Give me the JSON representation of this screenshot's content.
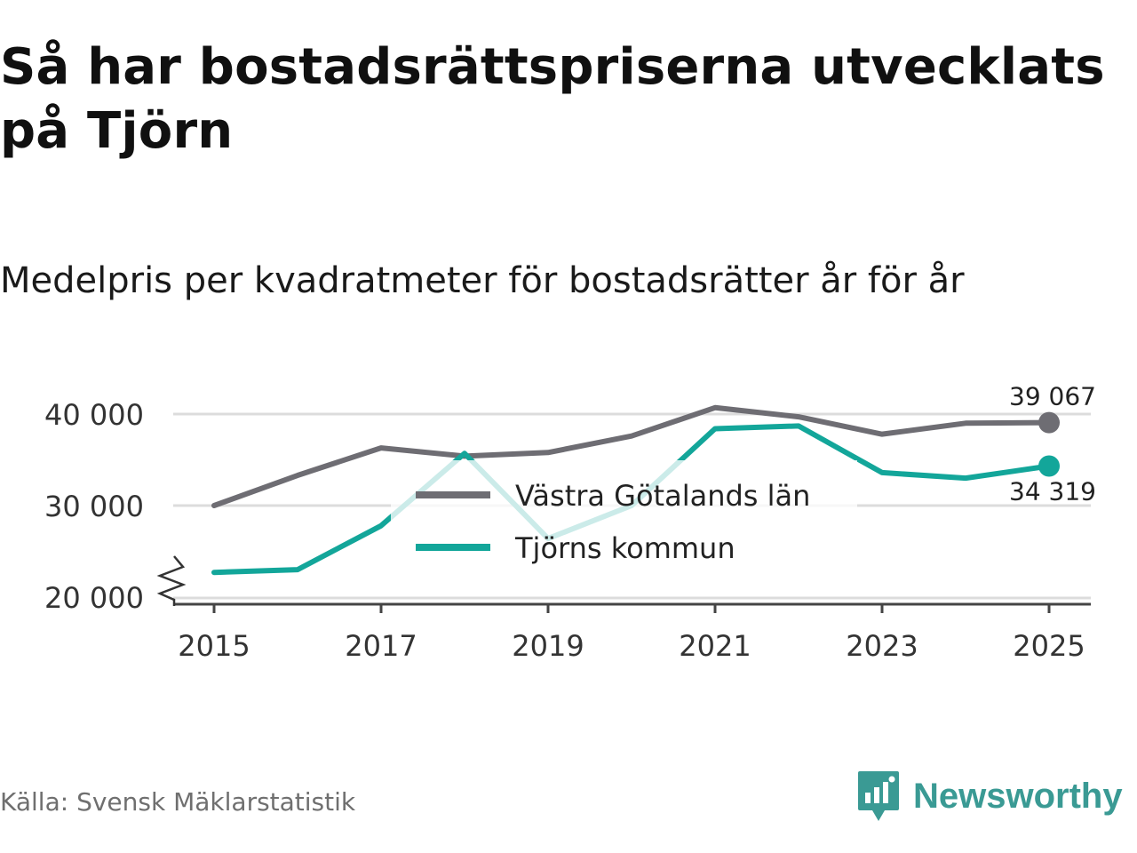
{
  "title": "Så har bostadsrättspriserna utvecklats på Tjörn",
  "subtitle": "Medelpris per kvadratmeter för bostadsrätter år för år",
  "source": "Källa: Svensk Mäklarstatistik",
  "brand": {
    "name": "Newsworthy",
    "icon": "newsworthy-logo-icon",
    "color": "#3a9a94"
  },
  "chart_data": {
    "type": "line",
    "title": "Medelpris per kvadratmeter för bostadsrätter år för år",
    "xlabel": "",
    "ylabel": "",
    "x": [
      2015,
      2016,
      2017,
      2018,
      2019,
      2020,
      2021,
      2022,
      2023,
      2024,
      2025
    ],
    "ylim": [
      20000,
      40000
    ],
    "y_ticks": [
      20000,
      30000,
      40000
    ],
    "y_tick_labels": [
      "20 000",
      "30 000",
      "40 000"
    ],
    "x_ticks": [
      2015,
      2017,
      2019,
      2021,
      2023,
      2025
    ],
    "x_tick_labels": [
      "2015",
      "2017",
      "2019",
      "2021",
      "2023",
      "2025"
    ],
    "axis_break": true,
    "grid": true,
    "legend_position": "center",
    "series": [
      {
        "name": "Västra Götalands län",
        "color": "#6e6d73",
        "values": [
          30000,
          33300,
          36300,
          35400,
          35800,
          37600,
          40700,
          39700,
          37800,
          39000,
          39067
        ],
        "end_label": "39 067"
      },
      {
        "name": "Tjörns kommun",
        "color": "#13a69a",
        "values": [
          22700,
          23000,
          27800,
          35700,
          26400,
          30000,
          38400,
          38700,
          33600,
          33000,
          34319
        ],
        "end_label": "34 319"
      }
    ]
  }
}
